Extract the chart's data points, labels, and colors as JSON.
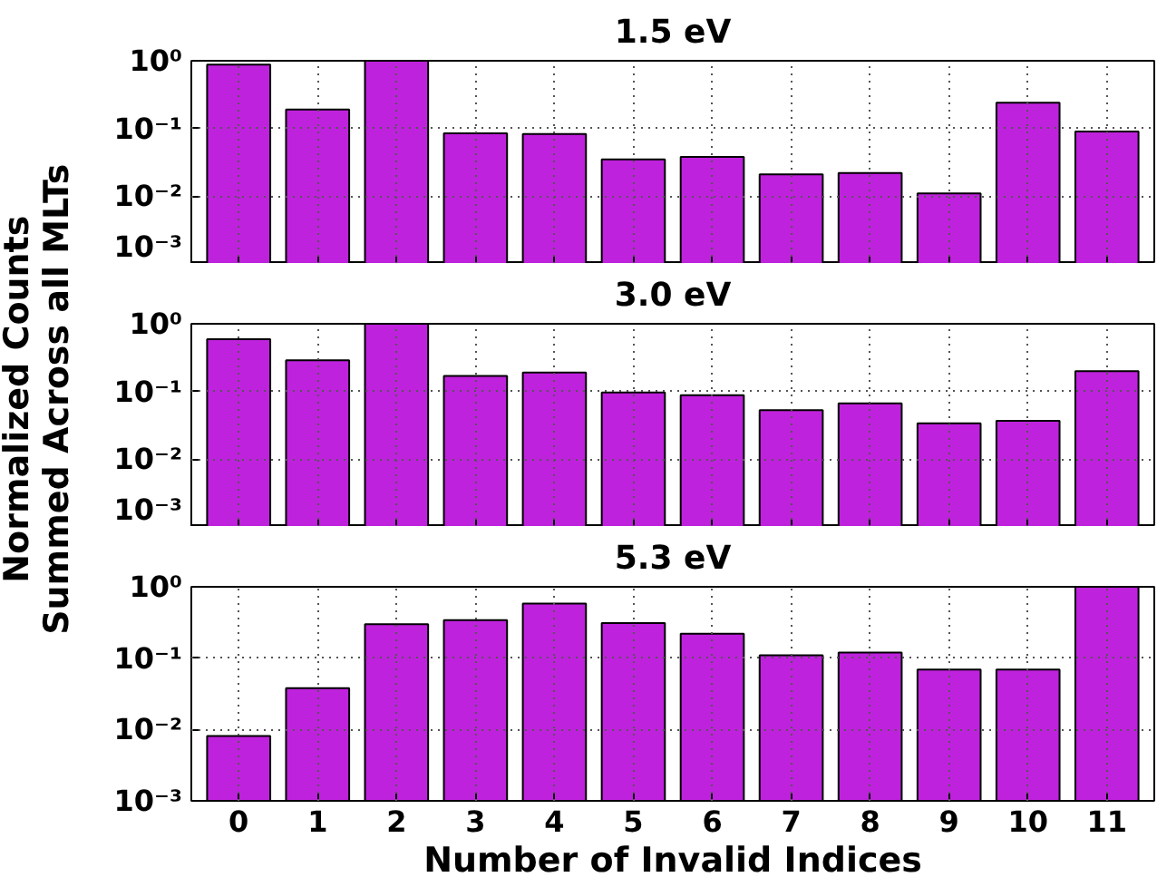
{
  "chart_data": [
    {
      "type": "bar",
      "title": "1.5 eV",
      "x": [
        0,
        1,
        2,
        3,
        4,
        5,
        6,
        7,
        8,
        9,
        10,
        11
      ],
      "xlim": [
        -0.6,
        11.6
      ],
      "xticks": [
        0,
        1,
        2,
        3,
        4,
        5,
        6,
        7,
        8,
        9,
        10,
        11
      ],
      "values": [
        0.88,
        0.19,
        1.0,
        0.085,
        0.083,
        0.035,
        0.038,
        0.021,
        0.022,
        0.011,
        0.24,
        0.09
      ],
      "color": "#bf22dd",
      "log": true,
      "ylim": [
        0.001,
        1
      ],
      "yticks": [
        {
          "value": 0.001,
          "label": "10⁻³"
        },
        {
          "value": 0.01,
          "label": "10⁻²"
        },
        {
          "value": 0.1,
          "label": "10⁻¹"
        },
        {
          "value": 1,
          "label": "10⁰"
        }
      ],
      "grid": true,
      "tick_labels": "y"
    },
    {
      "type": "bar",
      "title": "3.0 eV",
      "ylabel": "Normalized Counts\nSummed Across all MLTs",
      "x": [
        0,
        1,
        2,
        3,
        4,
        5,
        6,
        7,
        8,
        9,
        10,
        11
      ],
      "xlim": [
        -0.6,
        11.6
      ],
      "xticks": [
        0,
        1,
        2,
        3,
        4,
        5,
        6,
        7,
        8,
        9,
        10,
        11
      ],
      "values": [
        0.59,
        0.29,
        1.0,
        0.17,
        0.19,
        0.097,
        0.088,
        0.053,
        0.067,
        0.034,
        0.037,
        0.2
      ],
      "color": "#bf22dd",
      "log": true,
      "ylim": [
        0.001,
        1
      ],
      "yticks": [
        {
          "value": 0.001,
          "label": "10⁻³"
        },
        {
          "value": 0.01,
          "label": "10⁻²"
        },
        {
          "value": 0.1,
          "label": "10⁻¹"
        },
        {
          "value": 1,
          "label": "10⁰"
        }
      ],
      "grid": true,
      "tick_labels": "y"
    },
    {
      "type": "bar",
      "title": "5.3 eV",
      "xlabel": "Number of Invalid Indices",
      "x": [
        0,
        1,
        2,
        3,
        4,
        5,
        6,
        7,
        8,
        9,
        10,
        11
      ],
      "xlim": [
        -0.6,
        11.6
      ],
      "xticks": [
        0,
        1,
        2,
        3,
        4,
        5,
        6,
        7,
        8,
        9,
        10,
        11
      ],
      "values": [
        0.0081,
        0.038,
        0.3,
        0.34,
        0.58,
        0.31,
        0.22,
        0.11,
        0.12,
        0.069,
        0.069,
        1.0
      ],
      "color": "#bf22dd",
      "log": true,
      "ylim": [
        0.001,
        1
      ],
      "yticks": [
        {
          "value": 0.001,
          "label": "10⁻³"
        },
        {
          "value": 0.01,
          "label": "10⁻²"
        },
        {
          "value": 0.1,
          "label": "10⁻¹"
        },
        {
          "value": 1,
          "label": "10⁰"
        }
      ],
      "grid": true
    }
  ]
}
